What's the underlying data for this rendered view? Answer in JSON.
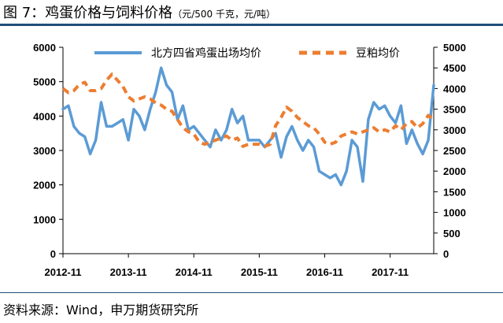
{
  "header": {
    "figure_label": "图 7：",
    "title": "鸡蛋价格与饲料价格",
    "units": "（元/500 千克，元/吨）"
  },
  "footer": {
    "source": "资料来源：Wind，申万期货研究所"
  },
  "colors": {
    "egg": "#5b9bd5",
    "soymeal": "#ed7d31",
    "axis": "#000000",
    "rule": "#1f4e79"
  },
  "chart_data": {
    "type": "line",
    "grid": false,
    "legend_position": "top-center",
    "x_ticks": [
      "2012-11",
      "2013-11",
      "2014-11",
      "2015-11",
      "2016-11",
      "2017-11"
    ],
    "x_range": [
      "2012-11",
      "2018-07"
    ],
    "y_left": {
      "range": [
        0,
        6000
      ],
      "ticks": [
        0,
        1000,
        2000,
        3000,
        4000,
        5000,
        6000
      ]
    },
    "y_right": {
      "range": [
        0,
        5000
      ],
      "ticks": [
        0,
        500,
        1000,
        1500,
        2000,
        2500,
        3000,
        3500,
        4000,
        4500,
        5000
      ]
    },
    "series": [
      {
        "name": "北方四省鸡蛋出场均价",
        "axis": "left",
        "style": "solid",
        "color": "#5b9bd5",
        "points": [
          [
            "2012-11",
            4200
          ],
          [
            "2012-12",
            4300
          ],
          [
            "2013-01",
            3700
          ],
          [
            "2013-02",
            3500
          ],
          [
            "2013-03",
            3400
          ],
          [
            "2013-04",
            2900
          ],
          [
            "2013-05",
            3300
          ],
          [
            "2013-06",
            4400
          ],
          [
            "2013-07",
            3700
          ],
          [
            "2013-08",
            3700
          ],
          [
            "2013-09",
            3800
          ],
          [
            "2013-10",
            3900
          ],
          [
            "2013-11",
            3300
          ],
          [
            "2013-12",
            4200
          ],
          [
            "2014-01",
            4000
          ],
          [
            "2014-02",
            3600
          ],
          [
            "2014-03",
            4200
          ],
          [
            "2014-04",
            4700
          ],
          [
            "2014-05",
            5400
          ],
          [
            "2014-06",
            4900
          ],
          [
            "2014-07",
            4700
          ],
          [
            "2014-08",
            3900
          ],
          [
            "2014-09",
            4300
          ],
          [
            "2014-10",
            3600
          ],
          [
            "2014-11",
            3700
          ],
          [
            "2014-12",
            3500
          ],
          [
            "2015-01",
            3300
          ],
          [
            "2015-02",
            3100
          ],
          [
            "2015-03",
            3600
          ],
          [
            "2015-04",
            3300
          ],
          [
            "2015-05",
            3600
          ],
          [
            "2015-06",
            4200
          ],
          [
            "2015-07",
            3800
          ],
          [
            "2015-08",
            4000
          ],
          [
            "2015-09",
            3300
          ],
          [
            "2015-10",
            3300
          ],
          [
            "2015-11",
            3300
          ],
          [
            "2015-12",
            3100
          ],
          [
            "2016-01",
            3300
          ],
          [
            "2016-02",
            3500
          ],
          [
            "2016-03",
            2800
          ],
          [
            "2016-04",
            3400
          ],
          [
            "2016-05",
            3700
          ],
          [
            "2016-06",
            3300
          ],
          [
            "2016-07",
            3000
          ],
          [
            "2016-08",
            3300
          ],
          [
            "2016-09",
            3100
          ],
          [
            "2016-10",
            2400
          ],
          [
            "2016-11",
            2300
          ],
          [
            "2016-12",
            2200
          ],
          [
            "2017-01",
            2300
          ],
          [
            "2017-02",
            2000
          ],
          [
            "2017-03",
            2400
          ],
          [
            "2017-04",
            3300
          ],
          [
            "2017-05",
            3100
          ],
          [
            "2017-06",
            2100
          ],
          [
            "2017-07",
            3900
          ],
          [
            "2017-08",
            4400
          ],
          [
            "2017-09",
            4200
          ],
          [
            "2017-10",
            4300
          ],
          [
            "2017-11",
            4000
          ],
          [
            "2017-12",
            3800
          ],
          [
            "2018-01",
            4300
          ],
          [
            "2018-02",
            3200
          ],
          [
            "2018-03",
            3600
          ],
          [
            "2018-04",
            3200
          ],
          [
            "2018-05",
            2900
          ],
          [
            "2018-06",
            3300
          ],
          [
            "2018-07",
            4900
          ]
        ]
      },
      {
        "name": "豆粕均价",
        "axis": "right",
        "style": "dashed",
        "color": "#ed7d31",
        "points": [
          [
            "2012-11",
            4000
          ],
          [
            "2012-12",
            3900
          ],
          [
            "2013-01",
            3950
          ],
          [
            "2013-02",
            4100
          ],
          [
            "2013-03",
            4150
          ],
          [
            "2013-04",
            3950
          ],
          [
            "2013-05",
            3950
          ],
          [
            "2013-06",
            4000
          ],
          [
            "2013-07",
            4200
          ],
          [
            "2013-08",
            4350
          ],
          [
            "2013-09",
            4200
          ],
          [
            "2013-10",
            4050
          ],
          [
            "2013-11",
            3800
          ],
          [
            "2013-12",
            3700
          ],
          [
            "2014-01",
            3750
          ],
          [
            "2014-02",
            3800
          ],
          [
            "2014-03",
            3750
          ],
          [
            "2014-04",
            3650
          ],
          [
            "2014-05",
            3600
          ],
          [
            "2014-06",
            3500
          ],
          [
            "2014-07",
            3450
          ],
          [
            "2014-08",
            3250
          ],
          [
            "2014-09",
            3050
          ],
          [
            "2014-10",
            2950
          ],
          [
            "2014-11",
            2900
          ],
          [
            "2014-12",
            2700
          ],
          [
            "2015-01",
            2650
          ],
          [
            "2015-02",
            2700
          ],
          [
            "2015-03",
            2750
          ],
          [
            "2015-04",
            2800
          ],
          [
            "2015-05",
            2850
          ],
          [
            "2015-06",
            2750
          ],
          [
            "2015-07",
            2800
          ],
          [
            "2015-08",
            2600
          ],
          [
            "2015-09",
            2650
          ],
          [
            "2015-10",
            2650
          ],
          [
            "2015-11",
            2650
          ],
          [
            "2015-12",
            2600
          ],
          [
            "2016-01",
            2650
          ],
          [
            "2016-02",
            3100
          ],
          [
            "2016-03",
            3300
          ],
          [
            "2016-04",
            3550
          ],
          [
            "2016-05",
            3450
          ],
          [
            "2016-06",
            3300
          ],
          [
            "2016-07",
            3200
          ],
          [
            "2016-08",
            3100
          ],
          [
            "2016-09",
            3050
          ],
          [
            "2016-10",
            2900
          ],
          [
            "2016-11",
            2700
          ],
          [
            "2016-12",
            2650
          ],
          [
            "2017-01",
            2700
          ],
          [
            "2017-02",
            2850
          ],
          [
            "2017-03",
            2900
          ],
          [
            "2017-04",
            2950
          ],
          [
            "2017-05",
            2900
          ],
          [
            "2017-06",
            2950
          ],
          [
            "2017-07",
            3000
          ],
          [
            "2017-08",
            3050
          ],
          [
            "2017-09",
            2950
          ],
          [
            "2017-10",
            3000
          ],
          [
            "2017-11",
            2950
          ],
          [
            "2017-12",
            3100
          ],
          [
            "2018-01",
            3000
          ],
          [
            "2018-02",
            3150
          ],
          [
            "2018-03",
            3200
          ],
          [
            "2018-04",
            3050
          ],
          [
            "2018-05",
            3150
          ],
          [
            "2018-06",
            3350
          ],
          [
            "2018-07",
            3250
          ]
        ]
      }
    ]
  }
}
